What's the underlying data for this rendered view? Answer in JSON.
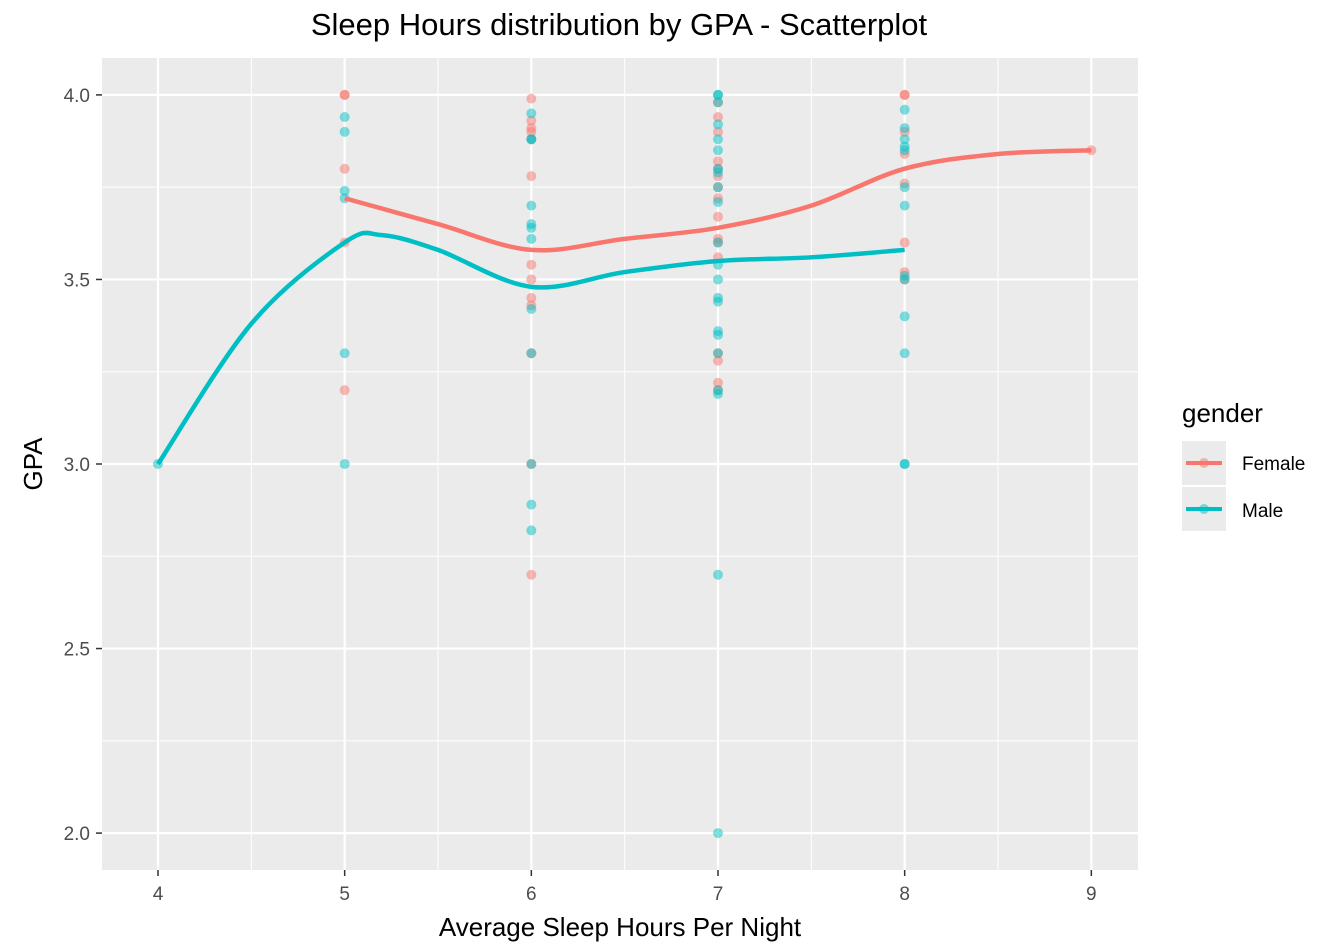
{
  "chart_data": {
    "type": "scatter",
    "title": "Sleep Hours distribution by GPA - Scatterplot",
    "xlabel": "Average Sleep Hours Per Night",
    "ylabel": "GPA",
    "xlim": [
      3.7,
      9.25
    ],
    "ylim": [
      1.9,
      4.1
    ],
    "x_ticks": [
      4,
      5,
      6,
      7,
      8,
      9
    ],
    "y_ticks": [
      2.0,
      2.5,
      3.0,
      3.5,
      4.0
    ],
    "x_tick_labels": [
      "4",
      "5",
      "6",
      "7",
      "8",
      "9"
    ],
    "y_tick_labels": [
      "2.0",
      "2.5",
      "3.0",
      "3.5",
      "4.0"
    ],
    "grid": true,
    "background": "#ebebeb",
    "legend": {
      "title": "gender",
      "position": "right",
      "entries": [
        {
          "label": "Female",
          "color": "#f8766d"
        },
        {
          "label": "Male",
          "color": "#00bfc4"
        }
      ]
    },
    "series": [
      {
        "name": "Female",
        "color": "#f8766d",
        "points": [
          [
            5,
            4.0
          ],
          [
            5,
            4.0
          ],
          [
            5,
            3.8
          ],
          [
            5,
            3.6
          ],
          [
            5,
            3.2
          ],
          [
            6,
            3.99
          ],
          [
            6,
            3.93
          ],
          [
            6,
            3.91
          ],
          [
            6,
            3.9
          ],
          [
            6,
            3.88
          ],
          [
            6,
            3.78
          ],
          [
            6,
            3.54
          ],
          [
            6,
            3.5
          ],
          [
            6,
            3.45
          ],
          [
            6,
            3.43
          ],
          [
            6,
            3.3
          ],
          [
            6,
            3.0
          ],
          [
            6,
            2.7
          ],
          [
            7,
            3.98
          ],
          [
            7,
            3.94
          ],
          [
            7,
            3.9
          ],
          [
            7,
            3.82
          ],
          [
            7,
            3.8
          ],
          [
            7,
            3.78
          ],
          [
            7,
            3.75
          ],
          [
            7,
            3.72
          ],
          [
            7,
            3.67
          ],
          [
            7,
            3.61
          ],
          [
            7,
            3.6
          ],
          [
            7,
            3.56
          ],
          [
            7,
            3.3
          ],
          [
            7,
            3.28
          ],
          [
            7,
            3.22
          ],
          [
            7,
            3.2
          ],
          [
            8,
            4.0
          ],
          [
            8,
            4.0
          ],
          [
            8,
            3.9
          ],
          [
            8,
            3.84
          ],
          [
            8,
            3.76
          ],
          [
            8,
            3.6
          ],
          [
            8,
            3.52
          ],
          [
            8,
            3.5
          ],
          [
            9,
            3.85
          ]
        ],
        "smooth": [
          [
            5,
            3.72
          ],
          [
            5.5,
            3.65
          ],
          [
            6,
            3.58
          ],
          [
            6.5,
            3.61
          ],
          [
            7,
            3.64
          ],
          [
            7.5,
            3.7
          ],
          [
            8,
            3.8
          ],
          [
            8.5,
            3.84
          ],
          [
            9,
            3.85
          ]
        ]
      },
      {
        "name": "Male",
        "color": "#00bfc4",
        "points": [
          [
            4,
            3.0
          ],
          [
            5,
            3.94
          ],
          [
            5,
            3.9
          ],
          [
            5,
            3.74
          ],
          [
            5,
            3.72
          ],
          [
            5,
            3.3
          ],
          [
            5,
            3.0
          ],
          [
            6,
            3.95
          ],
          [
            6,
            3.88
          ],
          [
            6,
            3.88
          ],
          [
            6,
            3.7
          ],
          [
            6,
            3.65
          ],
          [
            6,
            3.64
          ],
          [
            6,
            3.61
          ],
          [
            6,
            3.42
          ],
          [
            6,
            3.3
          ],
          [
            6,
            3.0
          ],
          [
            6,
            2.89
          ],
          [
            6,
            2.82
          ],
          [
            7,
            4.0
          ],
          [
            7,
            4.0
          ],
          [
            7,
            3.98
          ],
          [
            7,
            3.92
          ],
          [
            7,
            3.88
          ],
          [
            7,
            3.85
          ],
          [
            7,
            3.8
          ],
          [
            7,
            3.79
          ],
          [
            7,
            3.75
          ],
          [
            7,
            3.71
          ],
          [
            7,
            3.6
          ],
          [
            7,
            3.54
          ],
          [
            7,
            3.5
          ],
          [
            7,
            3.45
          ],
          [
            7,
            3.44
          ],
          [
            7,
            3.36
          ],
          [
            7,
            3.35
          ],
          [
            7,
            3.3
          ],
          [
            7,
            3.2
          ],
          [
            7,
            3.19
          ],
          [
            7,
            2.7
          ],
          [
            7,
            2.0
          ],
          [
            8,
            3.96
          ],
          [
            8,
            3.91
          ],
          [
            8,
            3.88
          ],
          [
            8,
            3.86
          ],
          [
            8,
            3.85
          ],
          [
            8,
            3.75
          ],
          [
            8,
            3.7
          ],
          [
            8,
            3.51
          ],
          [
            8,
            3.5
          ],
          [
            8,
            3.4
          ],
          [
            8,
            3.3
          ],
          [
            8,
            3.0
          ],
          [
            8,
            3.0
          ]
        ],
        "smooth": [
          [
            4,
            3.0
          ],
          [
            4.5,
            3.38
          ],
          [
            5,
            3.6
          ],
          [
            5.2,
            3.62
          ],
          [
            5.5,
            3.58
          ],
          [
            6,
            3.48
          ],
          [
            6.5,
            3.52
          ],
          [
            7,
            3.55
          ],
          [
            7.5,
            3.56
          ],
          [
            8,
            3.58
          ]
        ]
      }
    ]
  }
}
